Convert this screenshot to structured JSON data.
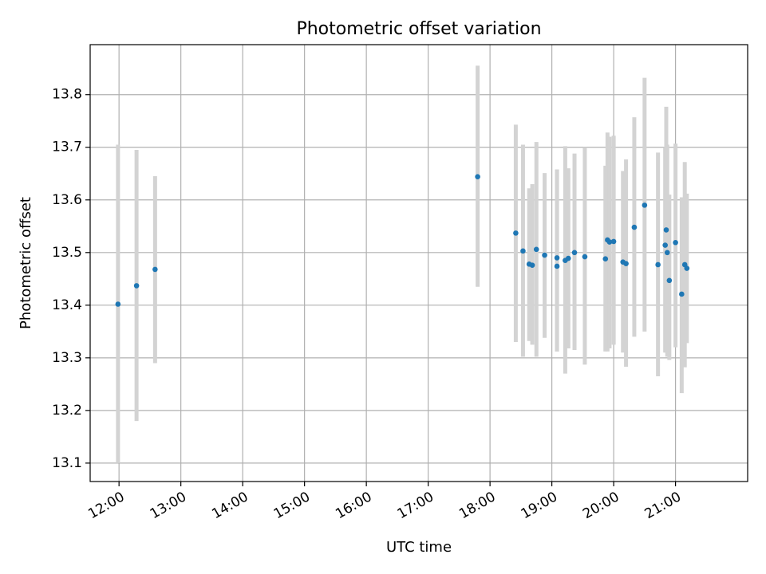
{
  "chart_data": {
    "type": "scatter",
    "title": "Photometric offset variation",
    "xlabel": "UTC time",
    "ylabel": "Photometric offset",
    "xlim": [
      "11:32",
      "22:10"
    ],
    "ylim": [
      13.065,
      13.895
    ],
    "grid": true,
    "colors": {
      "point": "#1f77b4",
      "errorbar": "#d3d3d3"
    },
    "xticks": [
      "12:00",
      "13:00",
      "14:00",
      "15:00",
      "16:00",
      "17:00",
      "18:00",
      "19:00",
      "20:00",
      "21:00"
    ],
    "yticks": [
      "13.1",
      "13.2",
      "13.3",
      "13.4",
      "13.5",
      "13.6",
      "13.7",
      "13.8"
    ],
    "points": [
      {
        "t": "11:59",
        "y": 13.402,
        "lo": 13.1,
        "hi": 13.705
      },
      {
        "t": "12:17",
        "y": 13.437,
        "lo": 13.18,
        "hi": 13.695
      },
      {
        "t": "12:35",
        "y": 13.468,
        "lo": 13.29,
        "hi": 13.645
      },
      {
        "t": "17:48",
        "y": 13.644,
        "lo": 13.435,
        "hi": 13.855
      },
      {
        "t": "18:25",
        "y": 13.537,
        "lo": 13.33,
        "hi": 13.743
      },
      {
        "t": "18:32",
        "y": 13.503,
        "lo": 13.302,
        "hi": 13.705
      },
      {
        "t": "18:38",
        "y": 13.478,
        "lo": 13.332,
        "hi": 13.622
      },
      {
        "t": "18:41",
        "y": 13.476,
        "lo": 13.325,
        "hi": 13.63
      },
      {
        "t": "18:45",
        "y": 13.506,
        "lo": 13.302,
        "hi": 13.71
      },
      {
        "t": "18:53",
        "y": 13.495,
        "lo": 13.338,
        "hi": 13.651
      },
      {
        "t": "19:05",
        "y": 13.49,
        "lo": 13.312,
        "hi": 13.658
      },
      {
        "t": "19:05",
        "y": 13.474,
        "lo": 13.312,
        "hi": 13.658
      },
      {
        "t": "19:13",
        "y": 13.485,
        "lo": 13.27,
        "hi": 13.702
      },
      {
        "t": "19:16",
        "y": 13.489,
        "lo": 13.318,
        "hi": 13.66
      },
      {
        "t": "19:22",
        "y": 13.5,
        "lo": 13.315,
        "hi": 13.688
      },
      {
        "t": "19:32",
        "y": 13.492,
        "lo": 13.287,
        "hi": 13.7
      },
      {
        "t": "19:52",
        "y": 13.488,
        "lo": 13.312,
        "hi": 13.665
      },
      {
        "t": "19:54",
        "y": 13.524,
        "lo": 13.312,
        "hi": 13.728
      },
      {
        "t": "19:56",
        "y": 13.52,
        "lo": 13.318,
        "hi": 13.72
      },
      {
        "t": "20:00",
        "y": 13.521,
        "lo": 13.325,
        "hi": 13.722
      },
      {
        "t": "20:09",
        "y": 13.482,
        "lo": 13.31,
        "hi": 13.655
      },
      {
        "t": "20:12",
        "y": 13.479,
        "lo": 13.283,
        "hi": 13.677
      },
      {
        "t": "20:20",
        "y": 13.548,
        "lo": 13.34,
        "hi": 13.757
      },
      {
        "t": "20:30",
        "y": 13.59,
        "lo": 13.35,
        "hi": 13.832
      },
      {
        "t": "20:43",
        "y": 13.477,
        "lo": 13.265,
        "hi": 13.69
      },
      {
        "t": "20:50",
        "y": 13.514,
        "lo": 13.31,
        "hi": 13.7
      },
      {
        "t": "20:51",
        "y": 13.543,
        "lo": 13.31,
        "hi": 13.777
      },
      {
        "t": "20:52",
        "y": 13.5,
        "lo": 13.302,
        "hi": 13.705
      },
      {
        "t": "20:54",
        "y": 13.447,
        "lo": 13.296,
        "hi": 13.61
      },
      {
        "t": "21:00",
        "y": 13.519,
        "lo": 13.32,
        "hi": 13.707
      },
      {
        "t": "21:06",
        "y": 13.421,
        "lo": 13.233,
        "hi": 13.605
      },
      {
        "t": "21:09",
        "y": 13.477,
        "lo": 13.282,
        "hi": 13.672
      },
      {
        "t": "21:11",
        "y": 13.47,
        "lo": 13.328,
        "hi": 13.612
      }
    ]
  }
}
